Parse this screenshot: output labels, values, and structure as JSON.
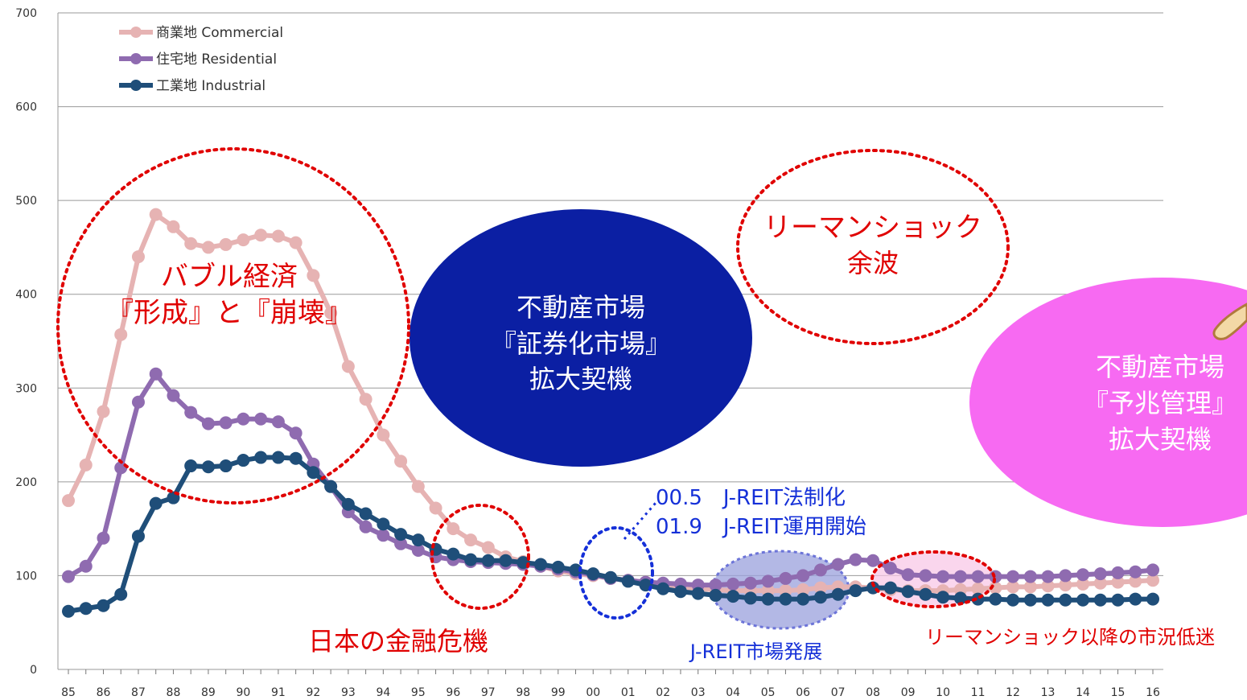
{
  "chart_data": {
    "type": "line",
    "categories": [
      "85",
      "86",
      "87",
      "88",
      "89",
      "90",
      "91",
      "92",
      "93",
      "94",
      "95",
      "96",
      "97",
      "98",
      "99",
      "00",
      "01",
      "02",
      "03",
      "04",
      "05",
      "06",
      "07",
      "08",
      "09",
      "10",
      "11",
      "12",
      "13",
      "14",
      "15",
      "16"
    ],
    "x": [
      1985,
      1985.5,
      1986,
      1986.5,
      1987,
      1987.5,
      1988,
      1988.5,
      1989,
      1989.5,
      1990,
      1990.5,
      1991,
      1991.5,
      1992,
      1992.5,
      1993,
      1993.5,
      1994,
      1994.5,
      1995,
      1995.5,
      1996,
      1996.5,
      1997,
      1997.5,
      1998,
      1998.5,
      1999,
      1999.5,
      2000,
      2000.5,
      2001,
      2001.5,
      2002,
      2002.5,
      2003,
      2003.5,
      2004,
      2004.5,
      2005,
      2005.5,
      2006,
      2006.5,
      2007,
      2007.5,
      2008,
      2008.5,
      2009,
      2009.5,
      2010,
      2010.5,
      2011,
      2011.5,
      2012,
      2012.5,
      2013,
      2013.5,
      2014,
      2014.5,
      2015,
      2015.5,
      2016
    ],
    "series": [
      {
        "name": "商業地 Commercial",
        "color": "#e6b3b3",
        "values": [
          180,
          218,
          275,
          357,
          440,
          485,
          472,
          454,
          450,
          453,
          458,
          463,
          462,
          455,
          420,
          380,
          323,
          288,
          250,
          222,
          195,
          172,
          150,
          138,
          130,
          120,
          115,
          110,
          105,
          102,
          100,
          97,
          95,
          93,
          90,
          88,
          86,
          85,
          84,
          84,
          84,
          84,
          85,
          87,
          88,
          88,
          87,
          85,
          84,
          84,
          84,
          85,
          86,
          87,
          88,
          88,
          89,
          90,
          91,
          92,
          93,
          94,
          95
        ]
      },
      {
        "name": "住宅地 Residential",
        "color": "#8f6bb0",
        "values": [
          99,
          110,
          140,
          215,
          285,
          315,
          292,
          274,
          262,
          263,
          267,
          267,
          264,
          252,
          219,
          195,
          168,
          152,
          143,
          134,
          127,
          120,
          117,
          115,
          114,
          113,
          112,
          110,
          107,
          104,
          101,
          97,
          95,
          93,
          92,
          91,
          90,
          90,
          91,
          92,
          94,
          97,
          100,
          106,
          112,
          117,
          116,
          108,
          101,
          100,
          99,
          99,
          99,
          99,
          99,
          99,
          99,
          100,
          101,
          102,
          103,
          104,
          106
        ]
      },
      {
        "name": "工業地 Industrial",
        "color": "#1f4e79",
        "values": [
          62,
          65,
          68,
          80,
          142,
          177,
          183,
          217,
          216,
          217,
          223,
          226,
          226,
          225,
          210,
          195,
          176,
          166,
          155,
          144,
          138,
          128,
          123,
          117,
          116,
          116,
          114,
          112,
          109,
          106,
          102,
          98,
          94,
          90,
          86,
          83,
          81,
          79,
          78,
          76,
          75,
          75,
          75,
          77,
          80,
          84,
          87,
          87,
          83,
          80,
          77,
          76,
          75,
          75,
          74,
          74,
          74,
          74,
          74,
          74,
          74,
          75,
          75
        ]
      }
    ],
    "xlabel": "",
    "ylabel": "",
    "ylim": [
      0,
      700
    ],
    "yticks": [
      0,
      100,
      200,
      300,
      400,
      500,
      600,
      700
    ],
    "grid": true,
    "legend_position": "top-left",
    "annotations": {
      "bubble_title": "バブル経済",
      "bubble_subtitle": "『形成』と『崩壊』",
      "securitization_l1": "不動産市場",
      "securitization_l2": "『証券化市場』",
      "securitization_l3": "拡大契機",
      "lehman_l1": "リーマンショック",
      "lehman_l2": "余波",
      "yocho_l1": "不動産市場",
      "yocho_l2": "『予兆管理』",
      "yocho_l3": "拡大契機",
      "jreit_l1": "00.5　J-REIT法制化",
      "jreit_l2": "01.9　J-REIT運用開始",
      "japan_crisis": "日本の金融危機",
      "jreit_growth": "J-REIT市場発展",
      "post_lehman": "リーマンショック以降の市況低迷"
    }
  }
}
